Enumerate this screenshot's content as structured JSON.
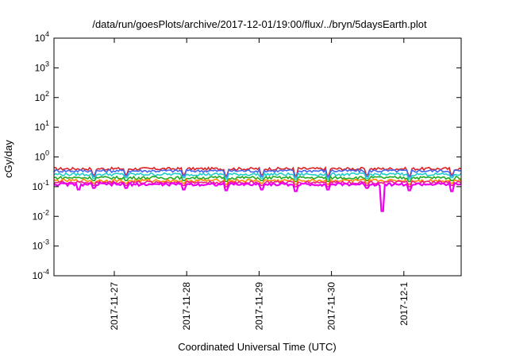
{
  "chart_data": {
    "type": "line",
    "title": "/data/run/goesPlots/archive/2017-12-01/19:00/flux/../bryn/5daysEarth.plot",
    "xlabel": "Coordinated Universal Time (UTC)",
    "ylabel": "cGy/day",
    "yscale": "log",
    "ylim": [
      0.0001,
      10000
    ],
    "y_ticks": [
      {
        "value": 0.0001,
        "base": "10",
        "exp": "-4"
      },
      {
        "value": 0.001,
        "base": "10",
        "exp": "-3"
      },
      {
        "value": 0.01,
        "base": "10",
        "exp": "-2"
      },
      {
        "value": 0.1,
        "base": "10",
        "exp": "-1"
      },
      {
        "value": 1,
        "base": "10",
        "exp": "0"
      },
      {
        "value": 10,
        "base": "10",
        "exp": "1"
      },
      {
        "value": 100,
        "base": "10",
        "exp": "2"
      },
      {
        "value": 1000,
        "base": "10",
        "exp": "3"
      },
      {
        "value": 10000,
        "base": "10",
        "exp": "4"
      }
    ],
    "xlim": [
      "2017-11-26T04:00",
      "2017-12-01T19:00"
    ],
    "x_ticks": [
      {
        "value": "2017-11-27",
        "label": "2017-11-27"
      },
      {
        "value": "2017-11-28",
        "label": "2017-11-28"
      },
      {
        "value": "2017-11-29",
        "label": "2017-11-29"
      },
      {
        "value": "2017-11-30",
        "label": "2017-11-30"
      },
      {
        "value": "2017-12-01",
        "label": "2017-12-1"
      }
    ],
    "grid": false,
    "legend": "none",
    "series": [
      {
        "color": "#dd2222",
        "baseline": 0.4,
        "dips": [
          {
            "t": "2017-11-26T17:00",
            "v": 0.25
          },
          {
            "t": "2017-11-27T04:00",
            "v": 0.26
          },
          {
            "t": "2017-11-27T23:00",
            "v": 0.26
          },
          {
            "t": "2017-11-28T13:00",
            "v": 0.24
          },
          {
            "t": "2017-11-29T01:00",
            "v": 0.25
          },
          {
            "t": "2017-11-29T12:00",
            "v": 0.24
          },
          {
            "t": "2017-11-29T23:00",
            "v": 0.24
          },
          {
            "t": "2017-11-30T12:00",
            "v": 0.25
          },
          {
            "t": "2017-12-01T02:00",
            "v": 0.24
          },
          {
            "t": "2017-12-01T16:00",
            "v": 0.26
          }
        ]
      },
      {
        "color": "#4466ee",
        "baseline": 0.34,
        "dips": [
          {
            "t": "2017-11-26T17:00",
            "v": 0.22
          },
          {
            "t": "2017-11-27T04:00",
            "v": 0.23
          },
          {
            "t": "2017-11-27T23:00",
            "v": 0.23
          },
          {
            "t": "2017-11-28T13:00",
            "v": 0.21
          },
          {
            "t": "2017-11-29T01:00",
            "v": 0.22
          },
          {
            "t": "2017-11-29T12:00",
            "v": 0.21
          },
          {
            "t": "2017-11-29T23:00",
            "v": 0.21
          },
          {
            "t": "2017-11-30T12:00",
            "v": 0.22
          },
          {
            "t": "2017-12-01T02:00",
            "v": 0.21
          },
          {
            "t": "2017-12-01T16:00",
            "v": 0.23
          }
        ]
      },
      {
        "color": "#22cccc",
        "baseline": 0.26,
        "dips": [
          {
            "t": "2017-11-26T17:00",
            "v": 0.19
          },
          {
            "t": "2017-11-27T04:00",
            "v": 0.2
          },
          {
            "t": "2017-11-27T23:00",
            "v": 0.2
          },
          {
            "t": "2017-11-28T13:00",
            "v": 0.18
          },
          {
            "t": "2017-11-29T01:00",
            "v": 0.19
          },
          {
            "t": "2017-11-29T12:00",
            "v": 0.18
          },
          {
            "t": "2017-11-29T23:00",
            "v": 0.18
          },
          {
            "t": "2017-11-30T12:00",
            "v": 0.19
          },
          {
            "t": "2017-12-01T02:00",
            "v": 0.18
          },
          {
            "t": "2017-12-01T16:00",
            "v": 0.2
          }
        ]
      },
      {
        "color": "#22aa22",
        "baseline": 0.2,
        "dips": [
          {
            "t": "2017-11-26T17:00",
            "v": 0.16
          },
          {
            "t": "2017-11-27T04:00",
            "v": 0.16
          },
          {
            "t": "2017-11-27T23:00",
            "v": 0.16
          },
          {
            "t": "2017-11-28T13:00",
            "v": 0.15
          },
          {
            "t": "2017-11-29T01:00",
            "v": 0.16
          },
          {
            "t": "2017-11-29T12:00",
            "v": 0.15
          },
          {
            "t": "2017-11-29T23:00",
            "v": 0.15
          },
          {
            "t": "2017-11-30T12:00",
            "v": 0.16
          },
          {
            "t": "2017-12-01T02:00",
            "v": 0.15
          },
          {
            "t": "2017-12-01T16:00",
            "v": 0.16
          }
        ]
      },
      {
        "color": "#ff8800",
        "baseline": 0.16,
        "dips": [
          {
            "t": "2017-11-26T17:00",
            "v": 0.13
          },
          {
            "t": "2017-11-27T04:00",
            "v": 0.13
          },
          {
            "t": "2017-11-27T23:00",
            "v": 0.13
          },
          {
            "t": "2017-11-28T13:00",
            "v": 0.12
          },
          {
            "t": "2017-11-29T01:00",
            "v": 0.13
          },
          {
            "t": "2017-11-29T12:00",
            "v": 0.12
          },
          {
            "t": "2017-11-29T23:00",
            "v": 0.12
          },
          {
            "t": "2017-11-30T12:00",
            "v": 0.13
          },
          {
            "t": "2017-12-01T02:00",
            "v": 0.12
          },
          {
            "t": "2017-12-01T16:00",
            "v": 0.13
          }
        ]
      },
      {
        "color": "#ee2288",
        "baseline": 0.14,
        "dips": [
          {
            "t": "2017-11-26T17:00",
            "v": 0.11
          },
          {
            "t": "2017-11-27T04:00",
            "v": 0.11
          },
          {
            "t": "2017-11-27T23:00",
            "v": 0.11
          },
          {
            "t": "2017-11-28T13:00",
            "v": 0.1
          },
          {
            "t": "2017-11-29T01:00",
            "v": 0.11
          },
          {
            "t": "2017-11-29T12:00",
            "v": 0.1
          },
          {
            "t": "2017-11-29T23:00",
            "v": 0.1
          },
          {
            "t": "2017-11-30T12:00",
            "v": 0.11
          },
          {
            "t": "2017-12-01T02:00",
            "v": 0.1
          },
          {
            "t": "2017-12-01T16:00",
            "v": 0.11
          }
        ]
      },
      {
        "color": "#ee00ee",
        "baseline": 0.12,
        "dips": [
          {
            "t": "2017-11-26T12:00",
            "v": 0.08
          },
          {
            "t": "2017-11-26T17:00",
            "v": 0.09
          },
          {
            "t": "2017-11-27T04:00",
            "v": 0.09
          },
          {
            "t": "2017-11-27T23:00",
            "v": 0.08
          },
          {
            "t": "2017-11-28T13:00",
            "v": 0.075
          },
          {
            "t": "2017-11-29T01:00",
            "v": 0.08
          },
          {
            "t": "2017-11-29T12:00",
            "v": 0.07
          },
          {
            "t": "2017-11-29T23:00",
            "v": 0.08
          },
          {
            "t": "2017-11-30T12:00",
            "v": 0.09
          },
          {
            "t": "2017-11-30T17:00",
            "v": 0.015
          },
          {
            "t": "2017-12-01T02:00",
            "v": 0.075
          },
          {
            "t": "2017-12-01T16:00",
            "v": 0.07
          }
        ]
      }
    ]
  }
}
